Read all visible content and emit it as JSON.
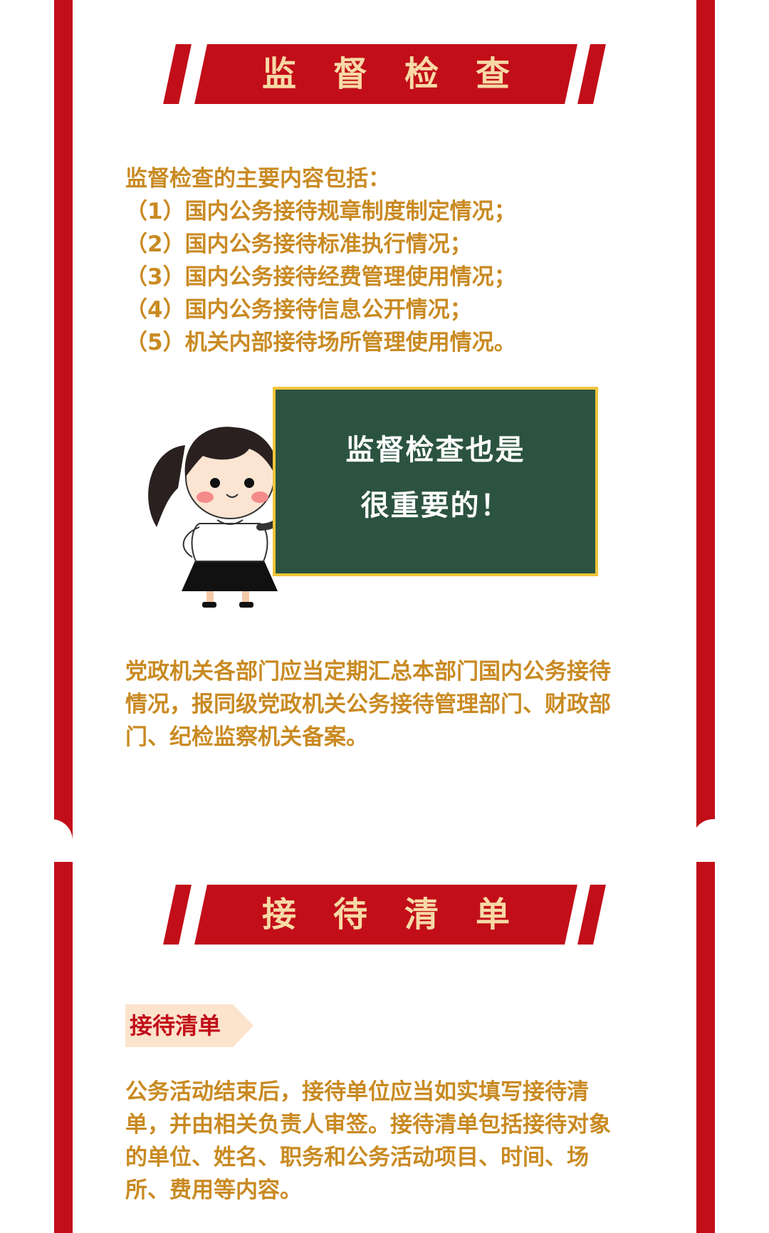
{
  "section1": {
    "title": "监督检查",
    "intro": "监督检查的主要内容包括：",
    "items": [
      "（1）国内公务接待规章制度制定情况；",
      "（2）国内公务接待标准执行情况；",
      "（3）国内公务接待经费管理使用情况；",
      "（4）国内公务接待信息公开情况；",
      "（5）机关内部接待场所管理使用情况。"
    ],
    "board_line1": "监督检查也是",
    "board_line2": "很重要的！",
    "paragraph": "党政机关各部门应当定期汇总本部门国内公务接待情况，报同级党政机关公务接待管理部门、财政部门、纪检监察机关备案。"
  },
  "section2": {
    "title": "接待清单",
    "tag": "接待清单",
    "paragraph": "公务活动结束后，接待单位应当如实填写接待清单，并由相关负责人审签。接待清单包括接待对象的单位、姓名、职务和公务活动项目、时间、场所、费用等内容。"
  },
  "colors": {
    "frame_red": "#c20e19",
    "text_gold": "#c98a22",
    "banner_text": "#f7d9a6",
    "board_green": "#2b5340",
    "board_border": "#f0c53a",
    "tag_bg": "#fbe3cc"
  }
}
